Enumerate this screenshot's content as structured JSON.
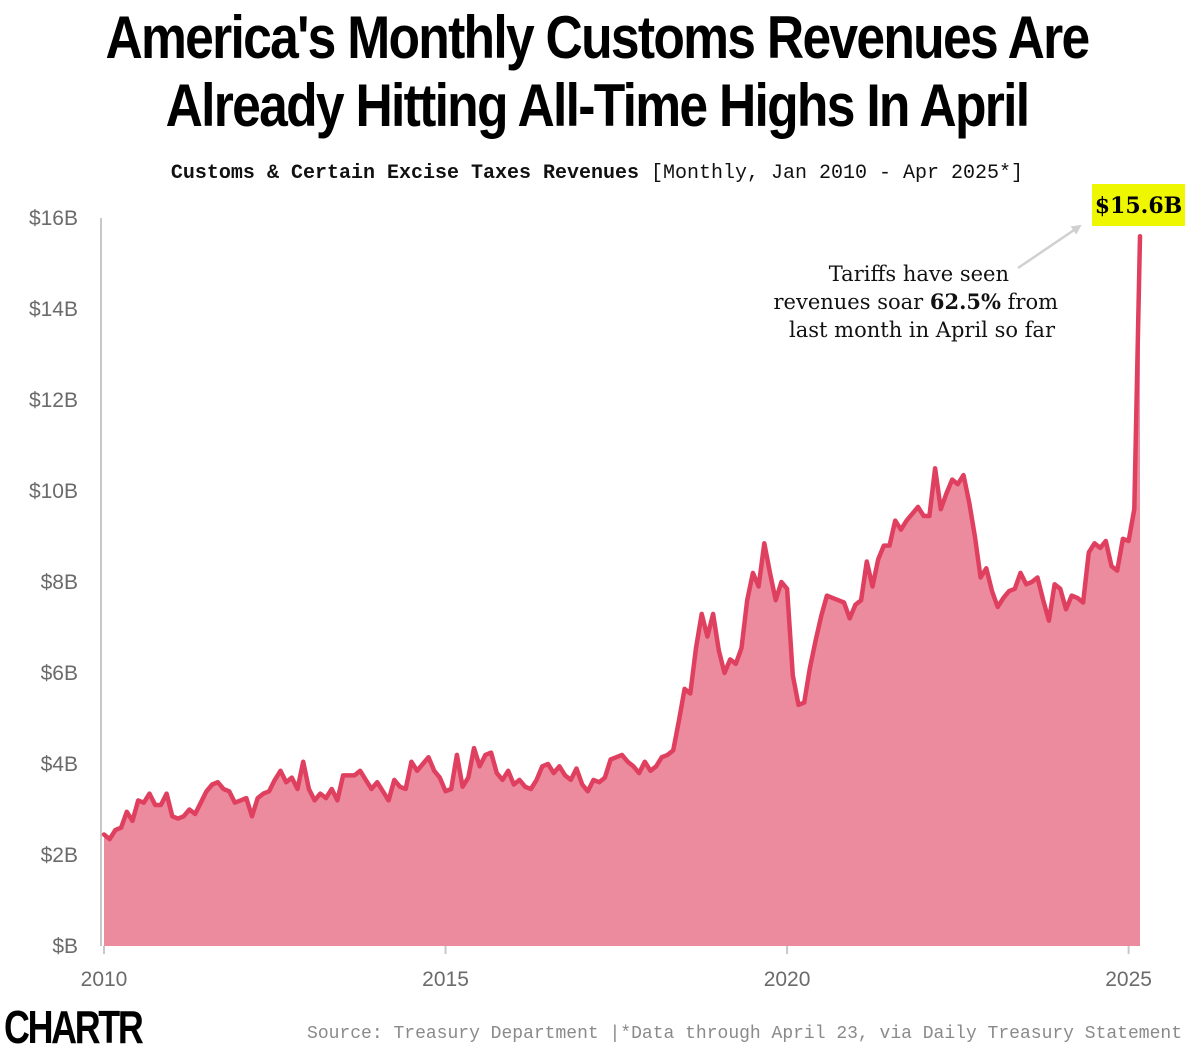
{
  "header": {
    "title_line1": "America's Monthly Customs Revenues Are",
    "title_line2": "Already Hitting All-Time Highs In April",
    "subtitle_bold": "Customs & Certain Excise Taxes Revenues",
    "subtitle_rest": " [Monthly, Jan 2010 - Apr 2025*]"
  },
  "annotation": {
    "line1": "Tariffs have seen",
    "line2_pre": "revenues soar ",
    "line2_bold": "62.5%",
    "line2_post": " from",
    "line3": "last month in April so far",
    "callout": "$15.6B"
  },
  "footer": {
    "logo": "CHARTR",
    "source": "Source: Treasury Department |*Data through April 23, via Daily Treasury Statement"
  },
  "colors": {
    "line": "#e0405f",
    "area": "#ec8a9e",
    "callout_bg": "#eef700",
    "axis": "#c8c8c8"
  },
  "chart_data": {
    "type": "area",
    "title": "America's Monthly Customs Revenues Are Already Hitting All-Time Highs In April",
    "subtitle": "Customs & Certain Excise Taxes Revenues [Monthly, Jan 2010 - Apr 2025*]",
    "xlabel": "",
    "ylabel": "",
    "x_start": "2010-01",
    "x_end": "2025-04",
    "x_ticks": [
      "2010",
      "2015",
      "2020",
      "2025"
    ],
    "ylim": [
      0,
      16
    ],
    "y_ticks": [
      "$B",
      "$2B",
      "$4B",
      "$6B",
      "$8B",
      "$10B",
      "$12B",
      "$14B",
      "$16B"
    ],
    "grid": false,
    "series": [
      {
        "units": "billions USD",
        "values": [
          2.45,
          2.35,
          2.55,
          2.6,
          2.95,
          2.75,
          3.2,
          3.15,
          3.35,
          3.1,
          3.1,
          3.35,
          2.85,
          2.8,
          2.85,
          3.0,
          2.9,
          3.15,
          3.4,
          3.55,
          3.6,
          3.45,
          3.4,
          3.15,
          3.2,
          3.25,
          2.85,
          3.25,
          3.35,
          3.4,
          3.65,
          3.85,
          3.6,
          3.7,
          3.45,
          4.05,
          3.45,
          3.2,
          3.35,
          3.25,
          3.45,
          3.2,
          3.75,
          3.75,
          3.75,
          3.85,
          3.65,
          3.45,
          3.6,
          3.4,
          3.2,
          3.65,
          3.5,
          3.45,
          4.05,
          3.85,
          4.0,
          4.15,
          3.85,
          3.7,
          3.4,
          3.45,
          4.2,
          3.5,
          3.7,
          4.35,
          3.95,
          4.2,
          4.25,
          3.8,
          3.65,
          3.85,
          3.55,
          3.65,
          3.5,
          3.45,
          3.65,
          3.95,
          4.0,
          3.8,
          3.95,
          3.75,
          3.65,
          3.9,
          3.55,
          3.4,
          3.65,
          3.6,
          3.7,
          4.1,
          4.15,
          4.2,
          4.05,
          3.95,
          3.8,
          4.05,
          3.85,
          3.95,
          4.15,
          4.2,
          4.3,
          4.95,
          5.65,
          5.55,
          6.55,
          7.3,
          6.8,
          7.3,
          6.5,
          6.0,
          6.3,
          6.2,
          6.55,
          7.6,
          8.2,
          7.9,
          8.85,
          8.2,
          7.6,
          8.0,
          7.85,
          5.95,
          5.3,
          5.35,
          6.1,
          6.7,
          7.25,
          7.7,
          7.65,
          7.6,
          7.55,
          7.2,
          7.5,
          7.6,
          8.45,
          7.9,
          8.5,
          8.8,
          8.8,
          9.35,
          9.15,
          9.35,
          9.5,
          9.65,
          9.45,
          9.45,
          10.5,
          9.6,
          9.95,
          10.25,
          10.15,
          10.35,
          9.75,
          9.0,
          8.1,
          8.3,
          7.8,
          7.45,
          7.65,
          7.8,
          7.85,
          8.2,
          7.95,
          8.0,
          8.1,
          7.6,
          7.15,
          7.95,
          7.85,
          7.4,
          7.7,
          7.65,
          7.55,
          8.65,
          8.85,
          8.75,
          8.9,
          8.35,
          8.25,
          8.95,
          8.9,
          9.6,
          15.6
        ]
      }
    ],
    "annotations": [
      {
        "text": "Tariffs have seen revenues soar 62.5% from last month in April so far",
        "x": "2025-03"
      },
      {
        "text": "$15.6B",
        "x": "2025-04",
        "y": 15.6
      }
    ]
  }
}
